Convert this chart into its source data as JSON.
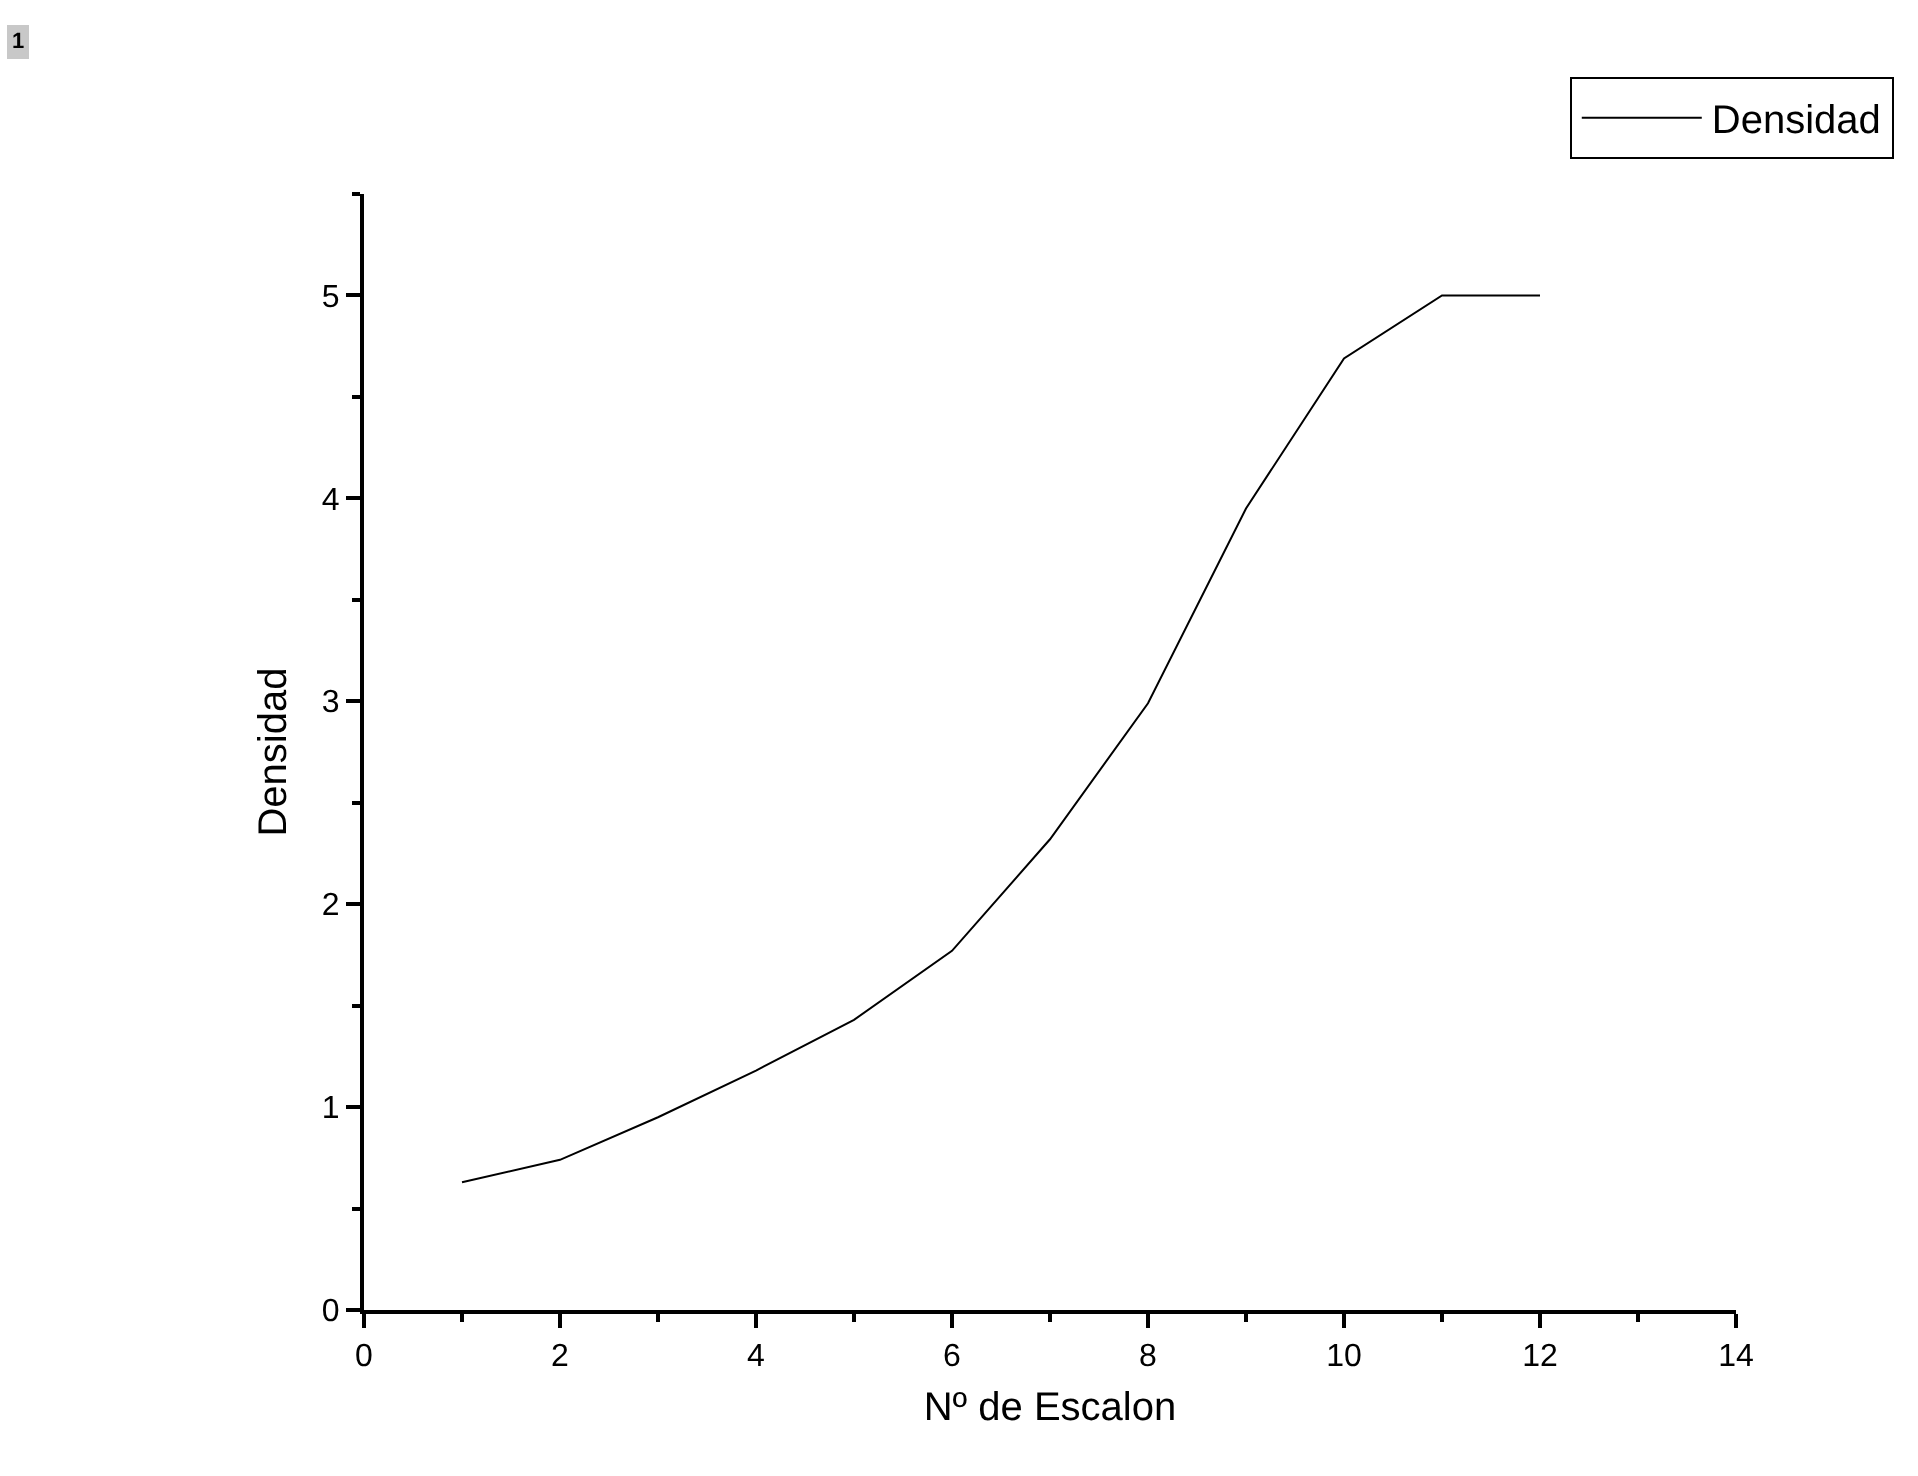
{
  "chart_data": {
    "type": "line",
    "xlabel": "Nº de Escalon",
    "ylabel": "Densidad",
    "x": [
      1,
      2,
      3,
      4,
      5,
      6,
      7,
      8,
      9,
      10,
      11,
      12
    ],
    "series": [
      {
        "name": "Densidad",
        "color": "#000000",
        "values": [
          0.63,
          0.74,
          0.95,
          1.18,
          1.43,
          1.77,
          2.32,
          2.99,
          3.95,
          4.69,
          5.0,
          5.0
        ]
      }
    ],
    "xlim": [
      0,
      14
    ],
    "xticks": [
      0,
      2,
      4,
      6,
      8,
      10,
      12,
      14
    ],
    "ylim": [
      0,
      5.5
    ],
    "yticks": [
      0,
      1,
      2,
      3,
      4,
      5
    ],
    "grid": false,
    "legend": "top right",
    "marker": "none",
    "line_style": "solid",
    "annotations": [
      "1"
    ]
  }
}
